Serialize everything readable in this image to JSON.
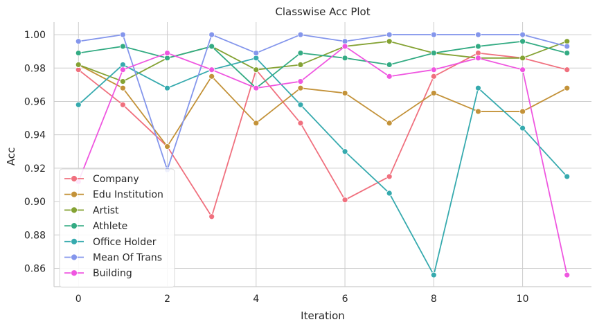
{
  "chart_data": {
    "type": "line",
    "title": "Classwise Acc Plot",
    "xlabel": "Iteration",
    "ylabel": "Acc",
    "x": [
      0,
      1,
      2,
      3,
      4,
      5,
      6,
      7,
      8,
      9,
      10,
      11
    ],
    "xlim": [
      -0.55,
      11.55
    ],
    "ylim": [
      0.849,
      1.0075
    ],
    "xticks": [
      0,
      2,
      4,
      6,
      8,
      10
    ],
    "xtick_labels": [
      "0",
      "2",
      "4",
      "6",
      "8",
      "10"
    ],
    "yticks": [
      0.86,
      0.88,
      0.9,
      0.92,
      0.94,
      0.96,
      0.98,
      1.0
    ],
    "ytick_labels": [
      "0.86",
      "0.88",
      "0.90",
      "0.92",
      "0.94",
      "0.96",
      "0.98",
      "1.00"
    ],
    "grid": true,
    "legend_position": "lower-left",
    "series": [
      {
        "name": "Company",
        "color": "#f0707e",
        "values": [
          0.979,
          0.958,
          0.933,
          0.891,
          0.979,
          0.947,
          0.901,
          0.915,
          0.975,
          0.989,
          0.986,
          0.979
        ]
      },
      {
        "name": "Edu Institution",
        "color": "#c39239",
        "values": [
          0.982,
          0.968,
          0.933,
          0.975,
          0.947,
          0.968,
          0.965,
          0.947,
          0.965,
          0.954,
          0.954,
          0.968
        ]
      },
      {
        "name": "Artist",
        "color": "#84a233",
        "values": [
          0.982,
          0.972,
          0.986,
          0.993,
          0.979,
          0.982,
          0.993,
          0.996,
          0.989,
          0.986,
          0.986,
          0.996
        ]
      },
      {
        "name": "Athlete",
        "color": "#33ab83",
        "values": [
          0.989,
          0.993,
          0.986,
          0.993,
          0.968,
          0.989,
          0.986,
          0.982,
          0.989,
          0.993,
          0.996,
          0.989
        ]
      },
      {
        "name": "Office Holder",
        "color": "#36aaae",
        "values": [
          0.958,
          0.982,
          0.968,
          0.979,
          0.986,
          0.958,
          0.93,
          0.905,
          0.856,
          0.968,
          0.944,
          0.915
        ]
      },
      {
        "name": "Mean Of Trans",
        "color": "#8496ec",
        "values": [
          0.996,
          1.0,
          0.919,
          1.0,
          0.989,
          1.0,
          0.996,
          1.0,
          1.0,
          1.0,
          1.0,
          0.993
        ]
      },
      {
        "name": "Building",
        "color": "#ef56e0",
        "values": [
          0.912,
          0.979,
          0.989,
          0.979,
          0.968,
          0.972,
          0.993,
          0.975,
          0.979,
          0.986,
          0.979,
          0.856
        ]
      }
    ]
  }
}
